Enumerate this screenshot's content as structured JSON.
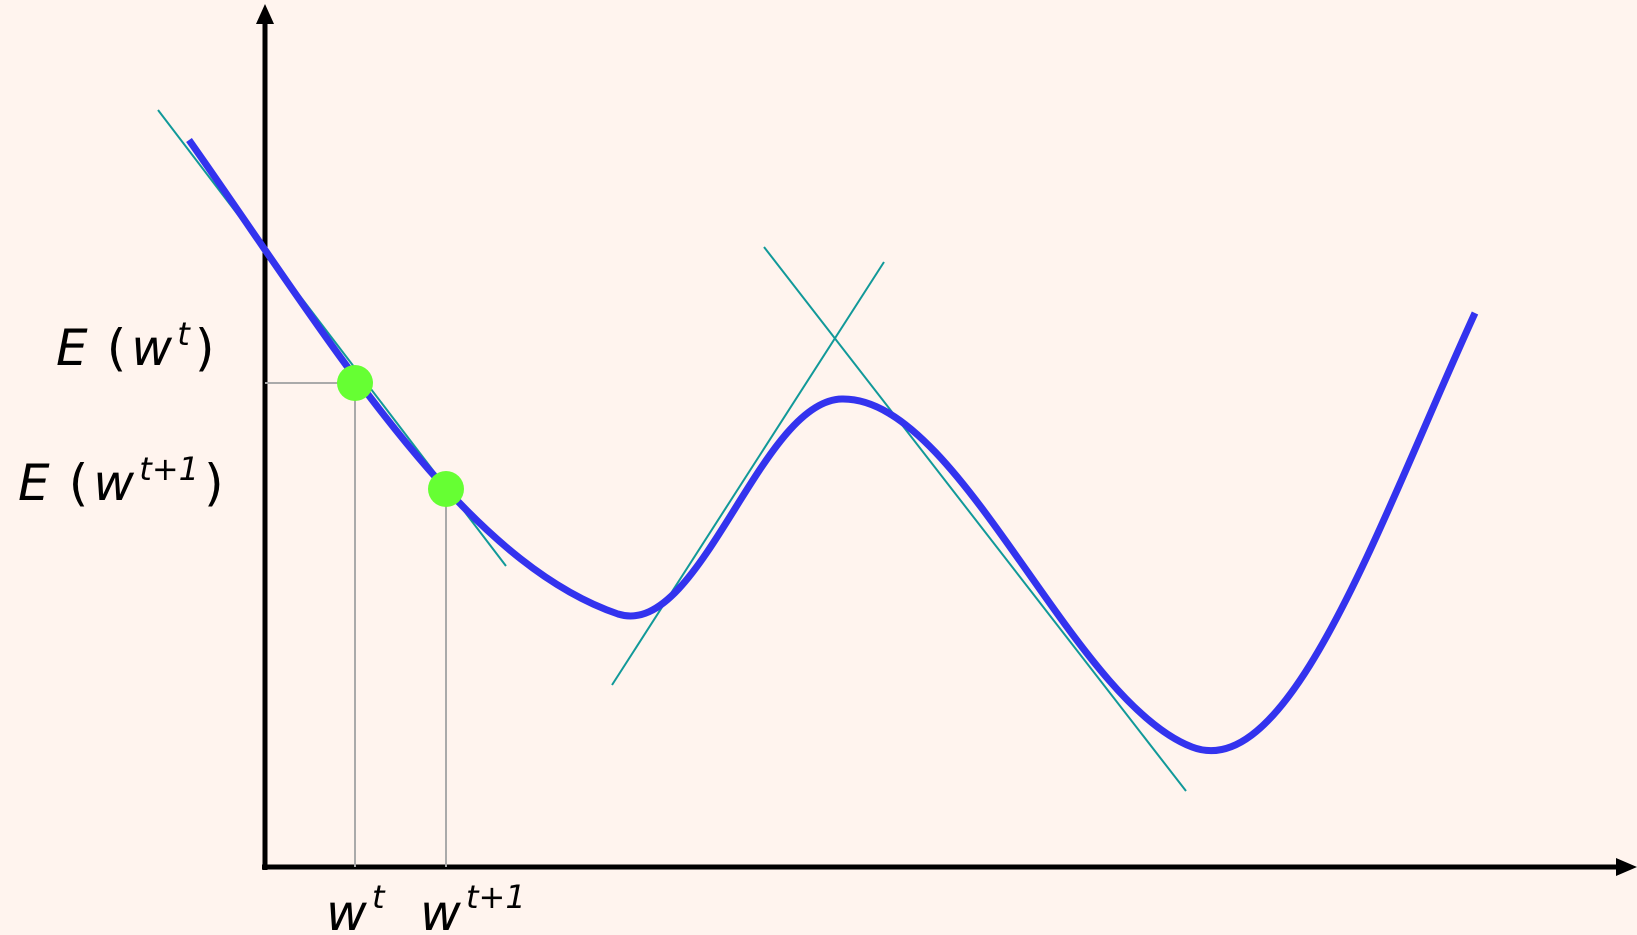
{
  "labels": {
    "e_wt": {
      "fn": "E",
      "open": "(",
      "var": "w",
      "sup": "t",
      "close": ")"
    },
    "e_wt1": {
      "fn": "E",
      "open": "(",
      "var": "w",
      "sup": "t+1",
      "close": ")"
    },
    "x_wt": {
      "var": "w",
      "sup": "t"
    },
    "x_wt1": {
      "var": "w",
      "sup": "t+1"
    }
  },
  "colors": {
    "background": "#fff4ee",
    "curve": "#3333ee",
    "tangent": "#119999",
    "point": "#66ff33",
    "guide": "#aaaaaa",
    "axis": "#000000"
  }
}
